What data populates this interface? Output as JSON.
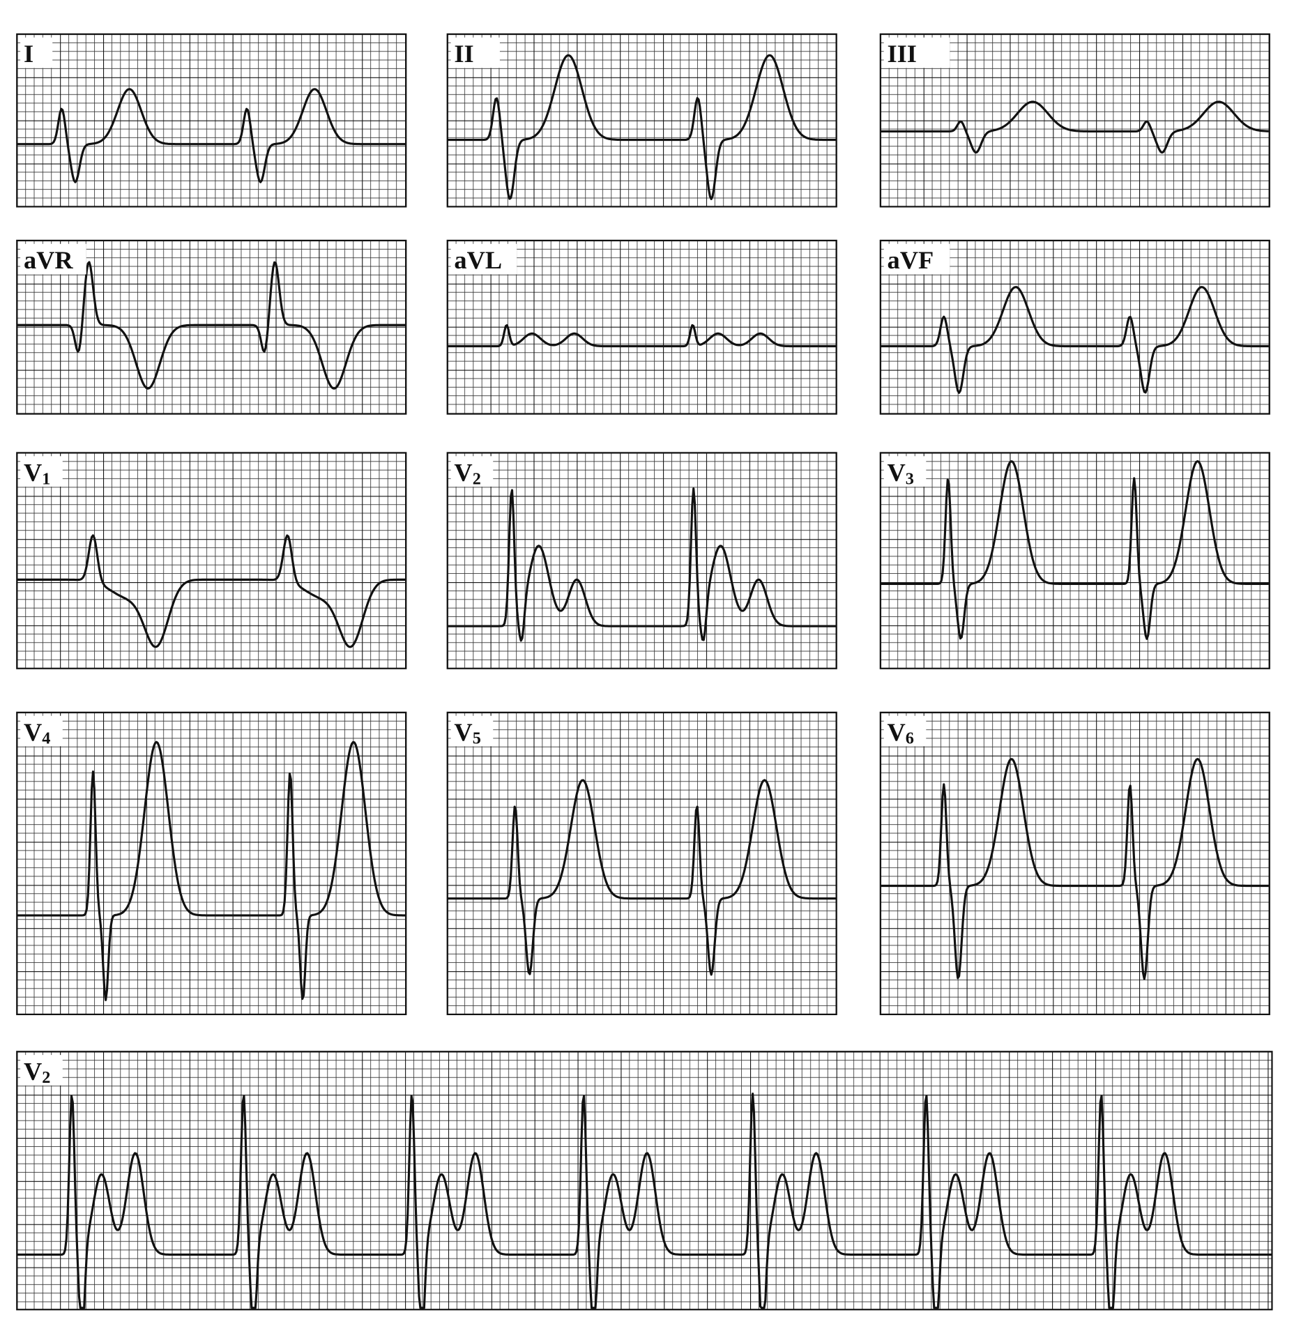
{
  "leads": [
    {
      "name": "I"
    },
    {
      "name": "II"
    },
    {
      "name": "III"
    },
    {
      "name": "aVR"
    },
    {
      "name": "aVL"
    },
    {
      "name": "aVF"
    },
    {
      "name": "V",
      "subscript": "1"
    },
    {
      "name": "V",
      "subscript": "2"
    },
    {
      "name": "V",
      "subscript": "3"
    },
    {
      "name": "V",
      "subscript": "4"
    },
    {
      "name": "V",
      "subscript": "5"
    },
    {
      "name": "V",
      "subscript": "6"
    }
  ],
  "rhythm_strip": {
    "name": "V",
    "subscript": "2"
  }
}
